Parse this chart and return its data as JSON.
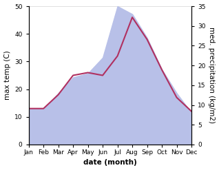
{
  "months": [
    "Jan",
    "Feb",
    "Mar",
    "Apr",
    "May",
    "Jun",
    "Jul",
    "Aug",
    "Sep",
    "Oct",
    "Nov",
    "Dec"
  ],
  "max_temp": [
    13,
    13,
    18,
    25,
    26,
    25,
    32,
    46,
    38,
    27,
    17,
    12
  ],
  "precipitation": [
    9,
    9,
    13,
    17,
    18,
    22,
    35,
    33,
    27,
    19,
    13,
    8
  ],
  "temp_ylim": [
    0,
    50
  ],
  "precip_ylim": [
    0,
    35
  ],
  "temp_color": "#b03060",
  "precip_fill_color": "#b8c0e8",
  "xlabel": "date (month)",
  "ylabel_left": "max temp (C)",
  "ylabel_right": "med. precipitation (kg/m2)",
  "bg_color": "#ffffff",
  "label_fontsize": 7.5,
  "tick_fontsize": 6.5,
  "linewidth": 1.5
}
